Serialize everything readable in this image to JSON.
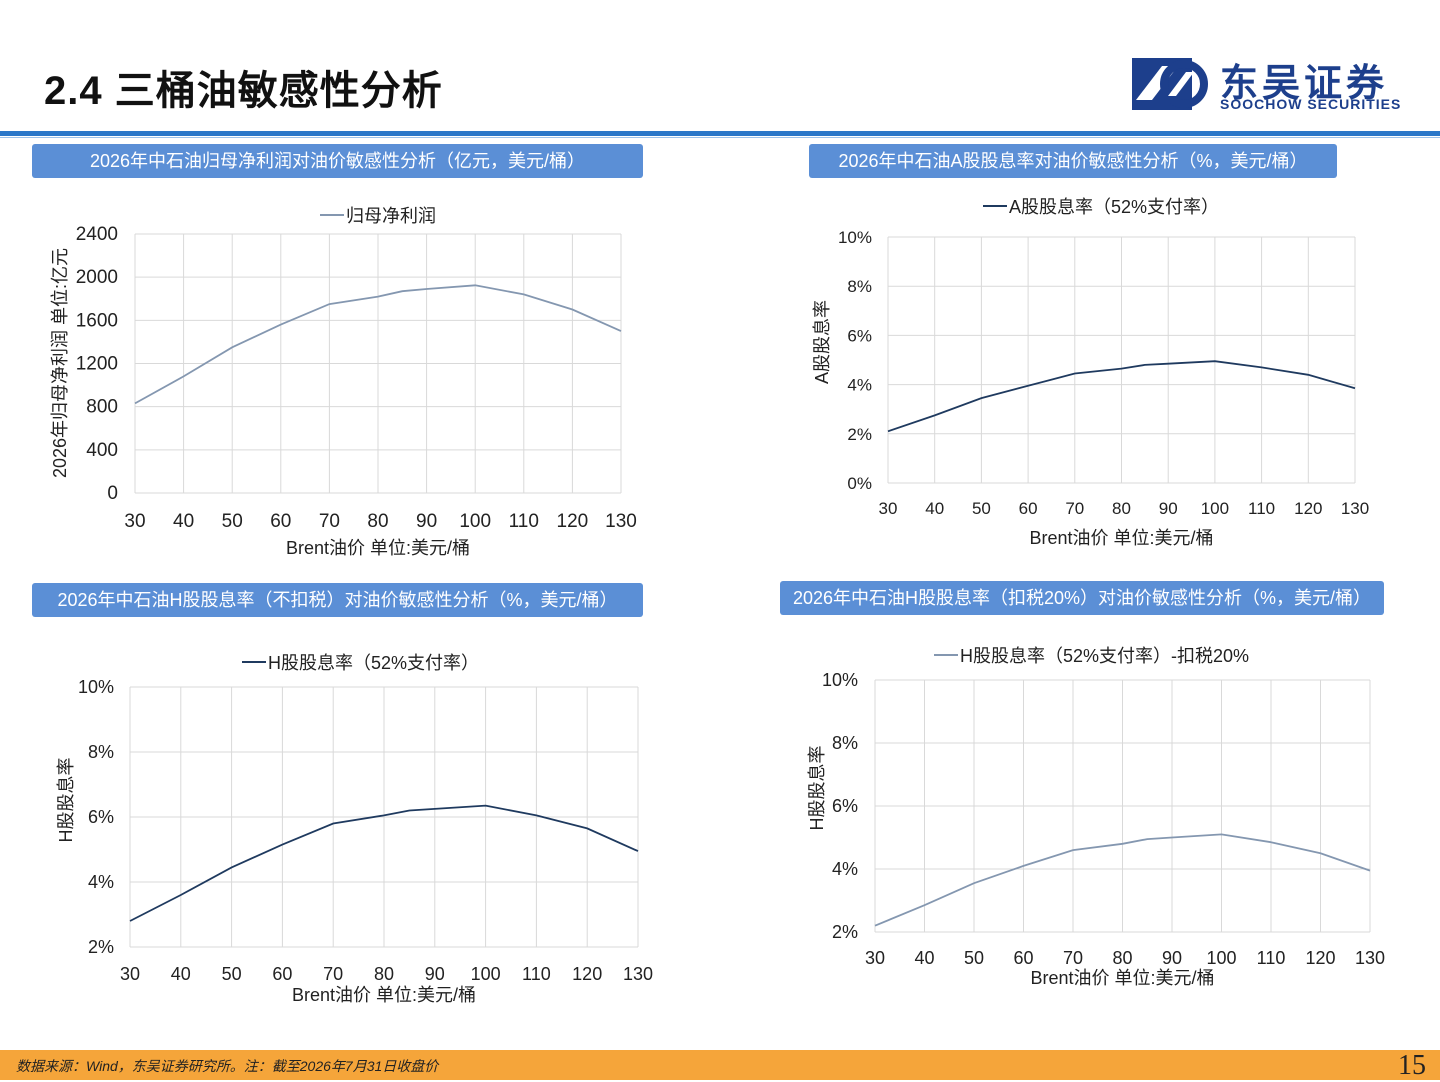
{
  "header": {
    "title": "2.4 三桶油敏感性分析",
    "logo_cn": "东吴证券",
    "logo_en": "SOOCHOW SECURITIES"
  },
  "panels": [
    {
      "title": "2026年中石油归母净利润对油价敏感性分析（亿元，美元/桶）"
    },
    {
      "title": "2026年中石油A股股息率对油价敏感性分析（%，美元/桶）"
    },
    {
      "title": "2026年中石油H股股息率（不扣税）对油价敏感性分析（%，美元/桶）"
    },
    {
      "title": "2026年中石油H股股息率（扣税20%）对油价敏感性分析（%，美元/桶）"
    }
  ],
  "chart_data": [
    {
      "type": "line",
      "x": [
        30,
        40,
        50,
        60,
        70,
        80,
        85,
        90,
        100,
        110,
        120,
        130
      ],
      "xticks": [
        "30",
        "40",
        "50",
        "60",
        "70",
        "80",
        "90",
        "100",
        "110",
        "120",
        "130"
      ],
      "series": [
        {
          "name": "归母净利润",
          "values": [
            830,
            1080,
            1350,
            1560,
            1750,
            1820,
            1870,
            1890,
            1925,
            1840,
            1700,
            1500
          ],
          "color": "#8497b0"
        }
      ],
      "ylim": [
        0,
        2400
      ],
      "yticks": [
        "0",
        "400",
        "800",
        "1200",
        "1600",
        "2000",
        "2400"
      ],
      "xlabel": "Brent油价  单位:美元/桶",
      "ylabel": "2026年归母净利润  单位:亿元",
      "legend": "top",
      "grid": true
    },
    {
      "type": "line",
      "x": [
        30,
        40,
        50,
        60,
        70,
        80,
        85,
        90,
        100,
        110,
        120,
        130
      ],
      "xticks": [
        "30",
        "40",
        "50",
        "60",
        "70",
        "80",
        "90",
        "100",
        "110",
        "120",
        "130"
      ],
      "series": [
        {
          "name": "A股股息率（52%支付率）",
          "values": [
            2.1,
            2.75,
            3.45,
            3.95,
            4.45,
            4.65,
            4.8,
            4.85,
            4.95,
            4.7,
            4.4,
            3.85
          ],
          "color": "#1f3a5f"
        }
      ],
      "ylim": [
        0,
        10
      ],
      "yticks": [
        "0%",
        "2%",
        "4%",
        "6%",
        "8%",
        "10%"
      ],
      "xlabel": "Brent油价  单位:美元/桶",
      "ylabel": "A股股息率",
      "legend": "top",
      "grid": true
    },
    {
      "type": "line",
      "x": [
        30,
        40,
        50,
        60,
        70,
        80,
        85,
        90,
        100,
        110,
        120,
        130
      ],
      "xticks": [
        "30",
        "40",
        "50",
        "60",
        "70",
        "80",
        "90",
        "100",
        "110",
        "120",
        "130"
      ],
      "series": [
        {
          "name": "H股股息率（52%支付率）",
          "values": [
            2.8,
            3.6,
            4.45,
            5.15,
            5.8,
            6.05,
            6.2,
            6.25,
            6.35,
            6.05,
            5.65,
            4.95
          ],
          "color": "#1f3a5f"
        }
      ],
      "ylim": [
        2,
        10
      ],
      "yticks": [
        "2%",
        "4%",
        "6%",
        "8%",
        "10%"
      ],
      "xlabel": "Brent油价  单位:美元/桶",
      "ylabel": "H股股息率",
      "legend": "top",
      "grid": true
    },
    {
      "type": "line",
      "x": [
        30,
        40,
        50,
        60,
        70,
        80,
        85,
        90,
        100,
        110,
        120,
        130
      ],
      "xticks": [
        "30",
        "40",
        "50",
        "60",
        "70",
        "80",
        "90",
        "100",
        "110",
        "120",
        "130"
      ],
      "series": [
        {
          "name": "H股股息率（52%支付率）-扣税20%",
          "values": [
            2.2,
            2.85,
            3.55,
            4.1,
            4.6,
            4.8,
            4.95,
            5.0,
            5.1,
            4.85,
            4.5,
            3.95
          ],
          "color": "#8497b0"
        }
      ],
      "ylim": [
        2,
        10
      ],
      "yticks": [
        "2%",
        "4%",
        "6%",
        "8%",
        "10%"
      ],
      "xlabel": "Brent油价  单位:美元/桶",
      "ylabel": "H股股息率",
      "legend": "top",
      "grid": true
    }
  ],
  "footer": {
    "note": "数据来源：Wind，东吴证券研究所。注：截至2026年7月31日收盘价",
    "page_number": "15"
  }
}
